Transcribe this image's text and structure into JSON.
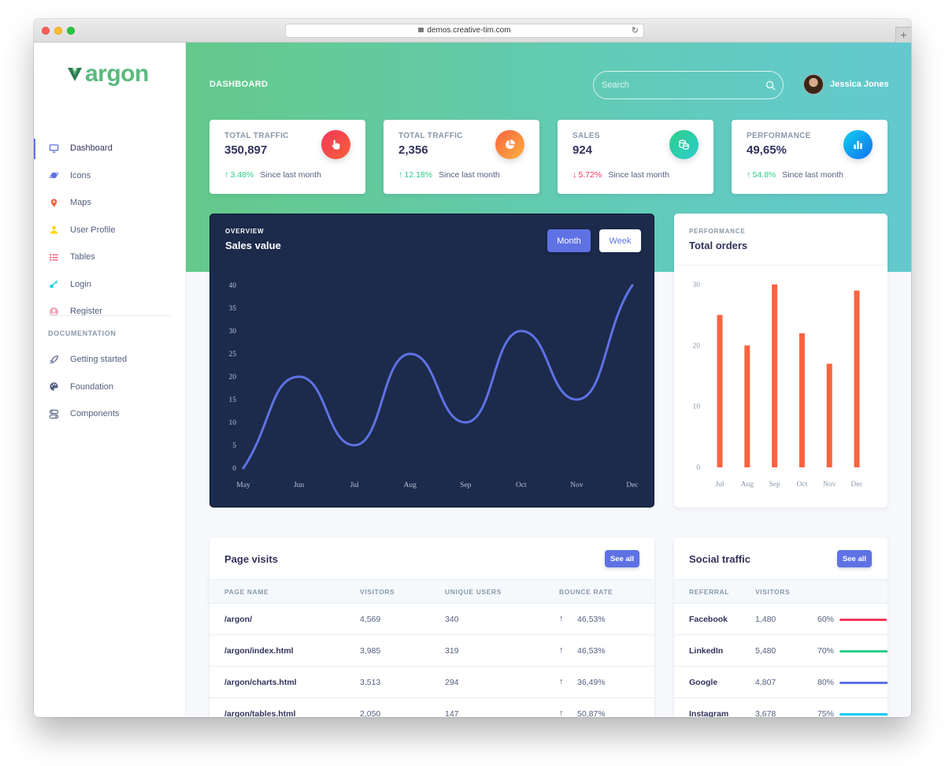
{
  "browser": {
    "url": "demos.creative-tim.com",
    "new_tab": "+"
  },
  "brand": {
    "logo_text": "argon"
  },
  "sidebar": {
    "items": [
      {
        "label": "Dashboard",
        "icon": "monitor-icon",
        "color": "#5e72e4",
        "active": true
      },
      {
        "label": "Icons",
        "icon": "planet-icon",
        "color": "#5e72e4"
      },
      {
        "label": "Maps",
        "icon": "pin-icon",
        "color": "#fb6340"
      },
      {
        "label": "User Profile",
        "icon": "user-icon",
        "color": "#ffd600"
      },
      {
        "label": "Tables",
        "icon": "list-icon",
        "color": "#f5365c"
      },
      {
        "label": "Login",
        "icon": "key-icon",
        "color": "#11cdef"
      },
      {
        "label": "Register",
        "icon": "circle-user-icon",
        "color": "#f3a4b5"
      }
    ],
    "doc_heading": "DOCUMENTATION",
    "doc_items": [
      {
        "label": "Getting started",
        "icon": "spaceship-icon"
      },
      {
        "label": "Foundation",
        "icon": "palette-icon"
      },
      {
        "label": "Components",
        "icon": "ui-icon"
      }
    ]
  },
  "header": {
    "title": "DASHBOARD",
    "search_placeholder": "Search",
    "user_name": "Jessica Jones"
  },
  "stats": [
    {
      "title": "TOTAL TRAFFIC",
      "value": "350,897",
      "icon": "hand-pointer-icon",
      "color": "#f5365c",
      "delta": "3.48%",
      "direction": "up",
      "caption": "Since last month"
    },
    {
      "title": "TOTAL TRAFFIC",
      "value": "2,356",
      "icon": "chart-pie-icon",
      "color": "#fb6340",
      "delta": "12.18%",
      "direction": "up",
      "caption": "Since last month"
    },
    {
      "title": "SALES",
      "value": "924",
      "icon": "coins-icon",
      "color": "#2dce89",
      "delta": "5.72%",
      "direction": "down",
      "caption": "Since last month"
    },
    {
      "title": "PERFORMANCE",
      "value": "49,65%",
      "icon": "chart-bar-icon",
      "color": "#11a0ef",
      "delta": "54.8%",
      "direction": "up",
      "caption": "Since last month"
    }
  ],
  "overview": {
    "kicker": "OVERVIEW",
    "title": "Sales value",
    "month_label": "Month",
    "week_label": "Week"
  },
  "orders": {
    "kicker": "PERFORMANCE",
    "title": "Total orders"
  },
  "chart_data": [
    {
      "type": "line",
      "title": "Sales value",
      "categories": [
        "May",
        "Jun",
        "Jul",
        "Aug",
        "Sep",
        "Oct",
        "Nov",
        "Dec"
      ],
      "values": [
        0,
        20,
        5,
        25,
        10,
        30,
        15,
        40
      ],
      "yticks": [
        0,
        5,
        10,
        15,
        20,
        25,
        30,
        35,
        40
      ],
      "ylim": [
        0,
        40
      ],
      "color": "#5e72e4",
      "grid": false
    },
    {
      "type": "bar",
      "title": "Total orders",
      "categories": [
        "Jul",
        "Aug",
        "Sep",
        "Oct",
        "Nov",
        "Dec"
      ],
      "values": [
        25,
        20,
        30,
        22,
        17,
        29
      ],
      "yticks": [
        0,
        10,
        20,
        30
      ],
      "ylim": [
        0,
        30
      ],
      "color": "#fb6340",
      "grid": false
    }
  ],
  "page_visits": {
    "title": "Page visits",
    "see_all": "See all",
    "columns": [
      "PAGE NAME",
      "VISITORS",
      "UNIQUE USERS",
      "BOUNCE RATE"
    ],
    "rows": [
      {
        "page": "/argon/",
        "visitors": "4,569",
        "unique": "340",
        "bounce": "46,53%",
        "direction": "up"
      },
      {
        "page": "/argon/index.html",
        "visitors": "3,985",
        "unique": "319",
        "bounce": "46,53%",
        "direction": "down"
      },
      {
        "page": "/argon/charts.html",
        "visitors": "3,513",
        "unique": "294",
        "bounce": "36,49%",
        "direction": "down"
      },
      {
        "page": "/argon/tables.html",
        "visitors": "2,050",
        "unique": "147",
        "bounce": "50,87%",
        "direction": "up"
      }
    ]
  },
  "social": {
    "title": "Social traffic",
    "see_all": "See all",
    "columns": [
      "REFERRAL",
      "VISITORS"
    ],
    "rows": [
      {
        "referral": "Facebook",
        "visitors": "1,480",
        "percent": "60%",
        "fraction": 0.6,
        "color": "#f5365c"
      },
      {
        "referral": "LinkedIn",
        "visitors": "5,480",
        "percent": "70%",
        "fraction": 0.7,
        "color": "#2dce89"
      },
      {
        "referral": "Google",
        "visitors": "4,807",
        "percent": "80%",
        "fraction": 0.8,
        "color": "#5e72e4"
      },
      {
        "referral": "Instagram",
        "visitors": "3,678",
        "percent": "75%",
        "fraction": 0.75,
        "color": "#11cdef"
      }
    ]
  }
}
